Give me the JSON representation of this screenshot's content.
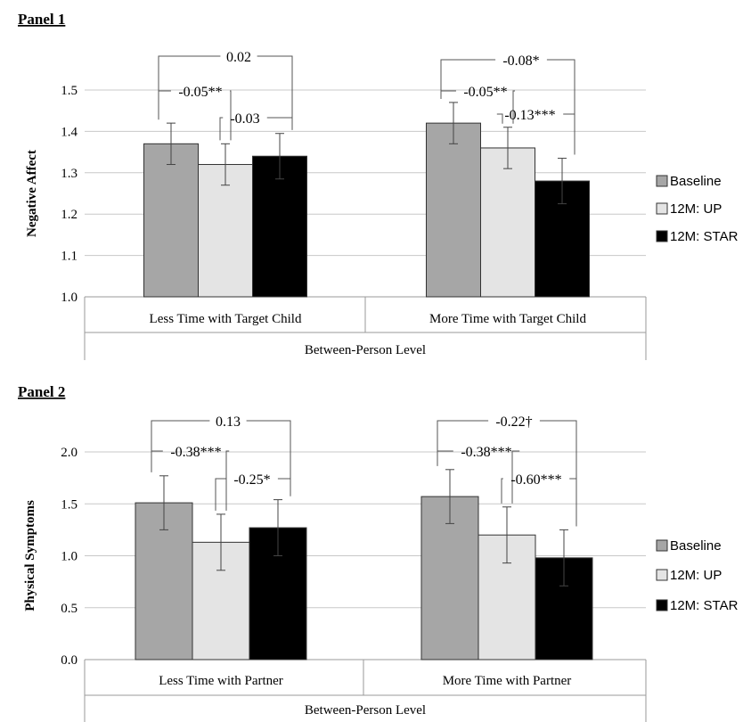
{
  "chart_data": [
    {
      "type": "bar",
      "panel_title": "Panel 1",
      "categories": [
        "Less Time with Target Child",
        "More Time  with Target Child"
      ],
      "series": [
        {
          "name": "Baseline",
          "values": [
            1.37,
            1.42
          ],
          "err": [
            0.05,
            0.05
          ]
        },
        {
          "name": "12M: UP",
          "values": [
            1.32,
            1.36
          ],
          "err": [
            0.05,
            0.05
          ]
        },
        {
          "name": "12M: STAR",
          "values": [
            1.34,
            1.28
          ],
          "err": [
            0.055,
            0.055
          ]
        }
      ],
      "xlabel": "Between-Person Level",
      "ylabel": "Negative Affect",
      "ylim": [
        1.0,
        1.5
      ],
      "yticks": [
        "1.0",
        "1.1",
        "1.2",
        "1.3",
        "1.4",
        "1.5"
      ],
      "grid": true,
      "legend": "right",
      "annotations": [
        [
          "0.02",
          "-0.05**",
          "-0.03"
        ],
        [
          "-0.08*",
          "-0.05**",
          "-0.13***"
        ]
      ]
    },
    {
      "type": "bar",
      "panel_title": "Panel 2",
      "categories": [
        "Less Time with Partner",
        "More Time with Partner"
      ],
      "series": [
        {
          "name": "Baseline",
          "values": [
            1.51,
            1.57
          ],
          "err": [
            0.26,
            0.26
          ]
        },
        {
          "name": "12M: UP",
          "values": [
            1.13,
            1.2
          ],
          "err": [
            0.27,
            0.27
          ]
        },
        {
          "name": "12M: STAR",
          "values": [
            1.27,
            0.98
          ],
          "err": [
            0.27,
            0.27
          ]
        }
      ],
      "xlabel": "Between-Person Level",
      "ylabel": "Physical Symptoms",
      "ylim": [
        0.0,
        2.0
      ],
      "yticks": [
        "0.0",
        "0.5",
        "1.0",
        "1.5",
        "2.0"
      ],
      "grid": true,
      "legend": "right",
      "annotations": [
        [
          "0.13",
          "-0.38***",
          "-0.25*"
        ],
        [
          "-0.22†",
          "-0.38***",
          "-0.60***"
        ]
      ]
    }
  ],
  "colors": {
    "Baseline": "#a6a6a6",
    "12M: UP": "#e4e4e4",
    "12M: STAR": "#000000"
  }
}
